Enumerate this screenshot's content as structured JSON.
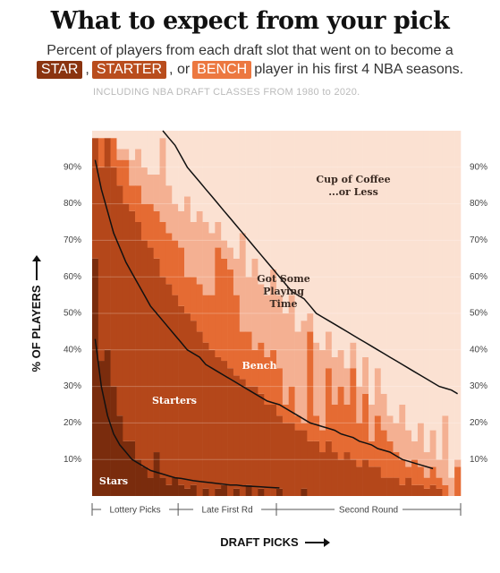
{
  "chart_data": {
    "type": "stacked-step",
    "title": "What to expect from your pick",
    "subtitle_line1": "Percent of players from each draft slot that went on to become a",
    "subtitle_line2": [
      {
        "box": "STAR",
        "color": "#8a3410"
      },
      {
        "text": ","
      },
      {
        "box": "STARTER",
        "color": "#b94d1d"
      },
      {
        "text": ", or"
      },
      {
        "box": "BENCH",
        "color": "#ec7840"
      },
      {
        "text": "player in his first 4 NBA seasons."
      }
    ],
    "note": "INCLUDING NBA DRAFT CLASSES FROM 1980 to 2020.",
    "y_axis_label": "% OF PLAYERS",
    "x_axis_label": "DRAFT PICKS",
    "picks": 60,
    "ylim": [
      0,
      100
    ],
    "yticks": [
      {
        "value": 10,
        "label": "10%"
      },
      {
        "value": 20,
        "label": "20%"
      },
      {
        "value": 30,
        "label": "30%"
      },
      {
        "value": 40,
        "label": "40%"
      },
      {
        "value": 50,
        "label": "50%"
      },
      {
        "value": 60,
        "label": "60%"
      },
      {
        "value": 70,
        "label": "70%"
      },
      {
        "value": 80,
        "label": "80%"
      },
      {
        "value": 90,
        "label": "90%"
      }
    ],
    "grid": true,
    "sections": [
      {
        "label": "Lottery Picks",
        "from": 1,
        "to": 14
      },
      {
        "label": "Late First Rd",
        "from": 15,
        "to": 30
      },
      {
        "label": "Second Round",
        "from": 31,
        "to": 60
      }
    ],
    "series": [
      {
        "label_lines": [
          "Stars"
        ],
        "color": "#7a2c0d",
        "label_color": "#ffffff",
        "values": [
          65,
          37,
          40,
          30,
          22,
          15,
          15,
          10,
          8,
          5,
          12,
          5,
          3,
          5,
          3,
          2,
          3,
          0,
          2,
          0,
          2,
          3,
          0,
          2,
          0,
          3,
          0,
          2,
          0,
          0,
          2,
          0,
          0,
          0,
          2,
          0,
          0,
          0,
          0,
          0,
          0,
          0,
          0,
          0,
          0,
          0,
          0,
          0,
          0,
          0,
          0,
          0,
          0,
          0,
          0,
          0,
          0,
          0,
          0,
          0
        ]
      },
      {
        "label_lines": [
          "Starters"
        ],
        "color": "#b4471a",
        "label_color": "#ffffff",
        "values": [
          33,
          53,
          58,
          60,
          63,
          65,
          63,
          65,
          62,
          63,
          53,
          55,
          55,
          50,
          49,
          48,
          45,
          45,
          40,
          40,
          36,
          34,
          35,
          31,
          32,
          27,
          30,
          26,
          25,
          25,
          20,
          20,
          20,
          18,
          16,
          15,
          15,
          12,
          15,
          12,
          10,
          12,
          10,
          8,
          10,
          8,
          8,
          5,
          5,
          5,
          3,
          5,
          3,
          3,
          2,
          3,
          2,
          0,
          0,
          0
        ]
      },
      {
        "label_lines": [
          "Bench"
        ],
        "color": "#e56b33",
        "label_color": "#ffffff",
        "values": [
          0,
          8,
          0,
          8,
          7,
          12,
          7,
          10,
          10,
          12,
          13,
          15,
          14,
          15,
          16,
          10,
          12,
          13,
          13,
          15,
          30,
          28,
          27,
          22,
          13,
          15,
          10,
          14,
          13,
          15,
          13,
          5,
          10,
          4,
          2,
          30,
          7,
          6,
          20,
          13,
          20,
          13,
          25,
          12,
          18,
          7,
          14,
          13,
          10,
          7,
          7,
          3,
          7,
          5,
          3,
          5,
          3,
          3,
          0,
          8
        ]
      },
      {
        "label_lines": [
          "Got Some",
          "Playing",
          "Time"
        ],
        "color": "#f4b092",
        "label_color": "#3a2a22",
        "values": [
          0,
          0,
          0,
          0,
          3,
          3,
          7,
          10,
          10,
          8,
          10,
          23,
          13,
          10,
          10,
          22,
          15,
          20,
          20,
          17,
          7,
          5,
          6,
          10,
          27,
          15,
          25,
          16,
          17,
          22,
          20,
          25,
          25,
          23,
          28,
          5,
          20,
          22,
          10,
          13,
          10,
          10,
          7,
          10,
          10,
          10,
          13,
          10,
          7,
          8,
          15,
          10,
          5,
          12,
          7,
          10,
          5,
          19,
          5,
          2
        ]
      },
      {
        "label_lines": [
          "Cup of Coffee",
          "...or Less"
        ],
        "color": "#fbe1d2",
        "label_color": "#3a2a22",
        "values": [
          2,
          2,
          2,
          2,
          5,
          5,
          8,
          5,
          10,
          12,
          12,
          2,
          15,
          20,
          22,
          18,
          25,
          22,
          25,
          28,
          25,
          30,
          32,
          35,
          28,
          40,
          35,
          42,
          45,
          38,
          45,
          50,
          45,
          55,
          52,
          50,
          58,
          60,
          55,
          62,
          60,
          65,
          58,
          70,
          62,
          75,
          65,
          72,
          78,
          80,
          75,
          82,
          85,
          80,
          88,
          82,
          90,
          78,
          95,
          90
        ]
      }
    ],
    "trend_lines": [
      {
        "color": "#111111",
        "values": [
          43,
          30,
          22,
          17,
          14,
          12,
          10,
          9,
          8,
          7,
          6.5,
          6,
          5.5,
          5,
          4.8,
          4.5,
          4.2,
          4,
          3.8,
          3.6,
          3.4,
          3.2,
          3,
          3,
          2.8,
          2.7,
          2.6,
          2.5,
          2.4,
          2.3,
          2.2,
          null,
          null,
          null,
          null,
          null,
          null,
          null,
          null,
          null,
          null,
          null,
          null,
          null,
          null,
          null,
          null,
          null,
          null,
          null,
          null,
          null,
          null,
          null,
          null,
          null,
          null,
          null,
          null,
          null
        ]
      },
      {
        "color": "#111111",
        "values": [
          92,
          84,
          78,
          72,
          68,
          64,
          61,
          58,
          55,
          52,
          50,
          48,
          46,
          44,
          42,
          40,
          39,
          38,
          36,
          35,
          34,
          33,
          32,
          31,
          30,
          29,
          28,
          27,
          26,
          25.5,
          25,
          24,
          23,
          22,
          21,
          20,
          19.5,
          19,
          18.5,
          18,
          17,
          16.5,
          16,
          15,
          14.5,
          14,
          13,
          12.5,
          12,
          11,
          10,
          9.5,
          9,
          8.5,
          8,
          7.5,
          null,
          null,
          null,
          null
        ]
      },
      {
        "color": "#111111",
        "values": [
          null,
          null,
          null,
          null,
          null,
          null,
          null,
          null,
          null,
          null,
          null,
          100,
          98,
          96,
          93,
          90,
          88,
          86,
          84,
          82,
          80,
          78,
          76,
          74,
          72,
          70,
          68,
          66,
          64,
          62,
          60,
          58,
          56,
          55,
          54,
          52,
          50,
          49,
          48,
          47,
          46,
          45,
          44,
          43,
          42,
          41,
          40,
          39,
          38,
          37,
          36,
          35,
          34,
          33,
          32,
          31,
          30,
          29.5,
          29,
          28
        ]
      }
    ]
  }
}
